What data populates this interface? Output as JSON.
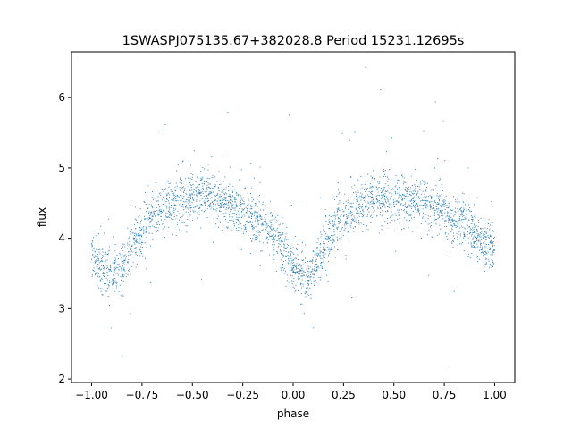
{
  "chart_data": {
    "type": "scatter",
    "title": "1SWASPJ075135.67+382028.8 Period 15231.12695s",
    "xlabel": "phase",
    "ylabel": "flux",
    "xlim": [
      -1.1,
      1.1
    ],
    "ylim": [
      1.95,
      6.65
    ],
    "xticks": [
      -1.0,
      -0.75,
      -0.5,
      -0.25,
      0.0,
      0.25,
      0.5,
      0.75,
      1.0
    ],
    "xtick_labels": [
      "−1.00",
      "−0.75",
      "−0.50",
      "−0.25",
      "0.00",
      "0.25",
      "0.50",
      "0.75",
      "1.00"
    ],
    "yticks": [
      2,
      3,
      4,
      5,
      6
    ],
    "ytick_labels": [
      "2",
      "3",
      "4",
      "5",
      "6"
    ],
    "grid": false,
    "marker_color": "#1f77b4",
    "series": [
      {
        "x": [
          -1.0,
          -0.95,
          -0.9,
          -0.85,
          -0.8,
          -0.75,
          -0.7,
          -0.65,
          -0.6,
          -0.55,
          -0.5,
          -0.45,
          -0.4,
          -0.35,
          -0.3,
          -0.25,
          -0.2,
          -0.15,
          -0.1,
          -0.05,
          0.0,
          0.05,
          0.08,
          0.1,
          0.15,
          0.2,
          0.25,
          0.3,
          0.35,
          0.4,
          0.45,
          0.5,
          0.55,
          0.6,
          0.65,
          0.7,
          0.75,
          0.8,
          0.85,
          0.9,
          0.95,
          1.0
        ],
        "y": [
          3.8,
          3.6,
          3.45,
          3.55,
          3.85,
          4.1,
          4.3,
          4.42,
          4.5,
          4.55,
          4.58,
          4.6,
          4.58,
          4.52,
          4.45,
          4.38,
          4.3,
          4.2,
          4.05,
          3.85,
          3.65,
          3.45,
          3.4,
          3.55,
          3.85,
          4.1,
          4.3,
          4.42,
          4.5,
          4.55,
          4.58,
          4.6,
          4.58,
          4.55,
          4.5,
          4.45,
          4.38,
          4.3,
          4.2,
          4.05,
          3.92,
          3.8
        ]
      }
    ]
  }
}
